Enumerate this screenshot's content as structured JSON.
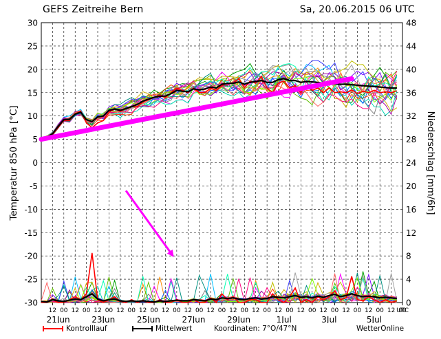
{
  "header": {
    "title": "GEFS Zeitreihe Bern",
    "run": "Sa, 20.06.2015 06 UTC"
  },
  "legend": {
    "control": {
      "label": "Kontrolllauf",
      "color": "#ff0000"
    },
    "mean": {
      "label": "Mittelwert",
      "color": "#000000"
    },
    "coords": "Koordinaten: 7°O/47°N",
    "brand": "WetterOnline"
  },
  "chart_data": {
    "type": "line",
    "title": "GEFS Zeitreihe Bern",
    "ylabel": "Temperatur 850 hPa [°C]",
    "y2label": "Niederschlag [mm/6h]",
    "ylim": [
      -30,
      30
    ],
    "y2lim": [
      0,
      48
    ],
    "yticks": [
      30,
      25,
      20,
      15,
      10,
      5,
      0,
      -5,
      -10,
      -15,
      -20,
      -25,
      -30
    ],
    "y2ticks": [
      48,
      44,
      40,
      36,
      32,
      28,
      24,
      20,
      16,
      12,
      8,
      4,
      0
    ],
    "x_hours_labels": [
      "12",
      "00",
      "12",
      "00",
      "12",
      "00",
      "12",
      "00",
      "12",
      "00",
      "12",
      "00",
      "12",
      "00",
      "12",
      "00",
      "12",
      "00",
      "12",
      "00",
      "12",
      "00",
      "12",
      "00",
      "12",
      "00",
      "12",
      "00",
      "12",
      "00",
      "12",
      "00",
      "12"
    ],
    "x_unit": "UTC",
    "date_labels": [
      {
        "label": "21Jun",
        "hour": 18
      },
      {
        "label": "23Jun",
        "hour": 66
      },
      {
        "label": "25Jun",
        "hour": 114
      },
      {
        "label": "27Jun",
        "hour": 162
      },
      {
        "label": "29Jun",
        "hour": 210
      },
      {
        "label": "1Jul",
        "hour": 258
      },
      {
        "label": "3Jul",
        "hour": 306
      },
      {
        "label": "5Jul",
        "hour": 354
      }
    ],
    "x_start_hour": 0,
    "x_end_hour": 384,
    "x_step_hours": 6,
    "ensemble_colors": [
      "#00c0ff",
      "#00a000",
      "#ff8c00",
      "#8000ff",
      "#00d0b0",
      "#c0c000",
      "#ff00ff",
      "#0060ff",
      "#60c000",
      "#a000a0",
      "#ff4000",
      "#808080",
      "#00ffb0",
      "#d0b000",
      "#4040ff",
      "#ff0080",
      "#009080",
      "#a0a0a0",
      "#80ff00",
      "#ff6060"
    ],
    "control_run": {
      "name": "Kontrolllauf",
      "temperature": [
        5,
        5.3,
        6,
        7.5,
        9,
        9,
        10.5,
        11,
        8.5,
        7.5,
        8.5,
        9,
        10.8,
        11.5,
        11,
        11.5,
        12,
        12,
        13,
        13.5,
        14,
        14.5,
        14,
        15,
        16,
        15.5,
        15,
        16,
        15,
        15,
        16,
        15.5,
        16.5,
        17,
        17,
        18,
        16,
        17.5,
        17,
        18.5,
        16,
        15,
        17,
        17.5,
        16,
        16.5,
        15,
        16.5,
        15.5,
        16,
        15,
        16,
        15,
        15.2,
        15,
        15.6,
        14.8,
        15.3,
        15,
        15.5,
        15,
        15.2,
        15,
        15.4
      ],
      "precipitation": [
        0,
        0,
        0.5,
        0,
        0,
        0.5,
        1,
        0.5,
        1.5,
        8.5,
        0.5,
        0,
        0.5,
        1,
        0.2,
        0,
        0.5,
        0,
        0.4,
        0,
        0,
        0.5,
        0,
        0,
        0.5,
        0,
        0,
        0.5,
        0,
        0,
        0.8,
        0,
        1.5,
        0.5,
        1,
        0,
        0,
        0.5,
        0.5,
        0,
        0,
        1.5,
        0.5,
        0,
        1,
        2.5,
        0,
        0.5,
        0,
        1,
        0.4,
        1,
        2,
        0.5,
        0.8,
        4.5,
        0.5,
        0.3,
        1,
        0.5,
        0,
        0.5,
        0,
        0.3
      ]
    },
    "mean": {
      "name": "Mittelwert",
      "temperature": [
        5,
        5.5,
        6.2,
        7.8,
        9.2,
        9.3,
        10.4,
        10.8,
        9.2,
        8.8,
        9.8,
        10,
        11.2,
        11.5,
        11.2,
        11.6,
        12,
        12.5,
        13.2,
        13.6,
        14,
        14.2,
        14.3,
        14.8,
        15.5,
        15.3,
        15.2,
        15.8,
        15.6,
        15.8,
        16.2,
        16,
        16.8,
        17,
        17,
        17.3,
        16.8,
        17.2,
        17.4,
        17.6,
        17.2,
        17.2,
        17.8,
        18,
        17.6,
        17.6,
        17.2,
        17.4,
        17.3,
        17.2,
        17,
        17.1,
        16.9,
        16.8,
        16.8,
        16.7,
        16.6,
        16.5,
        16.4,
        16.3,
        16.2,
        16.1,
        16,
        16
      ],
      "precipitation": [
        0.2,
        0.1,
        0.5,
        0.3,
        0.2,
        0.4,
        0.6,
        0.5,
        1,
        1.5,
        0.6,
        0.3,
        0.5,
        0.6,
        0.3,
        0.2,
        0.3,
        0.2,
        0.3,
        0.2,
        0.1,
        0.3,
        0.2,
        0.3,
        0.4,
        0.3,
        0.3,
        0.5,
        0.4,
        0.3,
        0.6,
        0.5,
        0.8,
        0.7,
        0.8,
        0.6,
        0.5,
        0.7,
        0.8,
        0.6,
        0.7,
        1,
        0.9,
        0.8,
        1,
        1.2,
        0.9,
        1,
        0.8,
        1.1,
        0.9,
        1.2,
        1.4,
        1,
        1.2,
        1.5,
        1.2,
        1,
        1.1,
        1,
        0.8,
        0.9,
        0.8,
        0.7
      ]
    },
    "annotations": [
      {
        "type": "trend-arrow",
        "color": "#ff00ff",
        "from": {
          "hour": 0,
          "temp": 5
        },
        "to": {
          "hour": 330,
          "temp": 18
        }
      },
      {
        "type": "arrow",
        "color": "#ff00ff",
        "from": {
          "hour": 90,
          "temp": -6
        },
        "to": {
          "hour": 140,
          "temp": -20
        }
      }
    ]
  }
}
